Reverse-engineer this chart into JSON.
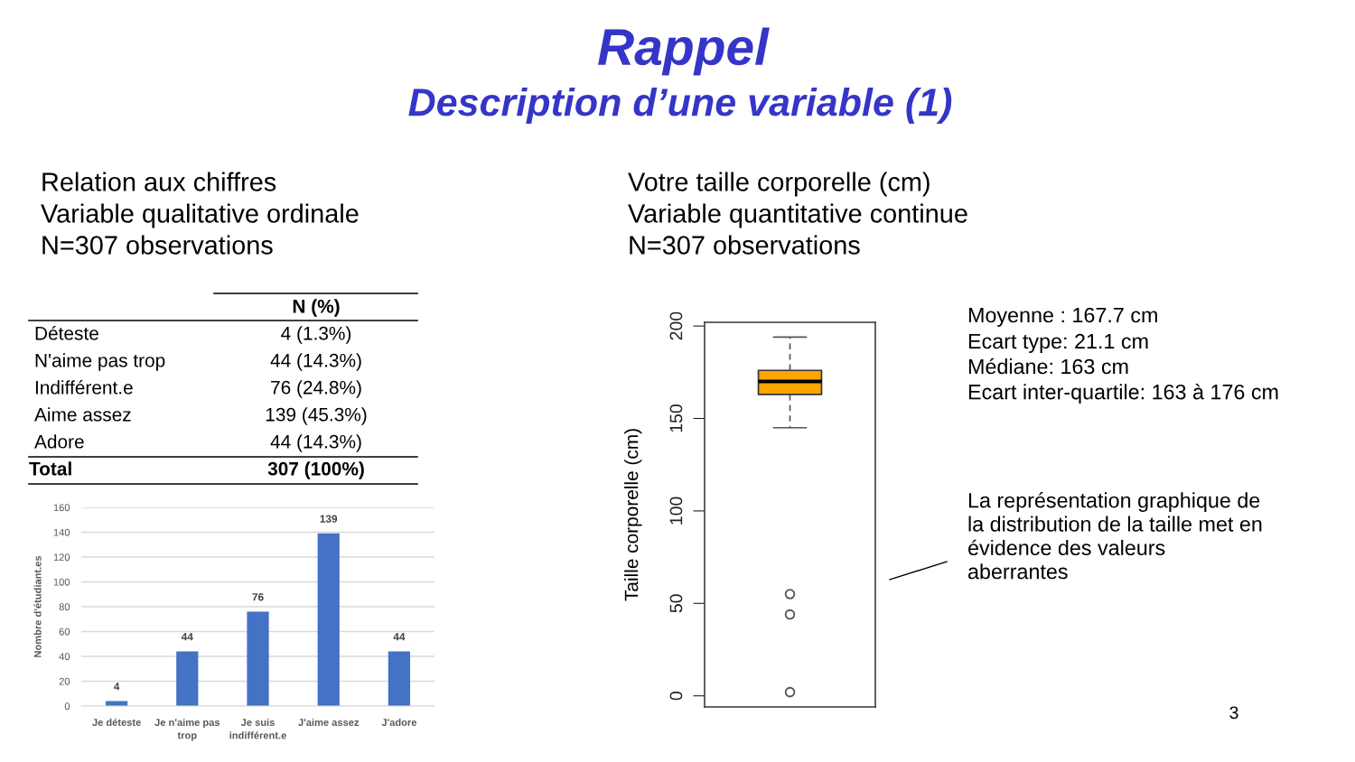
{
  "chart_data": [
    {
      "type": "other",
      "title": "Rappel",
      "subtitle": "Description d’une variable (1)",
      "annotations": [
        "3"
      ]
    },
    {
      "type": "other",
      "annotations": [
        "Relation aux chiffres",
        "Variable qualitative ordinale",
        "N=307 observations"
      ]
    },
    {
      "type": "other",
      "title": "N (%)",
      "annotations": [
        "Déteste",
        "4 (1.3%)",
        "N'aime pas trop",
        "44 (14.3%)",
        "Indifférent.e",
        "76 (24.8%)",
        "Aime assez",
        "139 (45.3%)",
        "Adore",
        "44 (14.3%)",
        "Total",
        "307 (100%)"
      ]
    },
    {
      "type": "bar",
      "categories": [
        "Je déteste",
        "Je n'aime pas\ntrop",
        "Je suis\nindifférent.e",
        "J'aime assez",
        "J'adore"
      ],
      "values": [
        4,
        44,
        76,
        139,
        44
      ],
      "color": "#4472c4",
      "ylabel": "Nombre d'étudiant.es",
      "ylim": [
        0,
        160
      ],
      "yticks": [
        0,
        20,
        40,
        60,
        80,
        100,
        120,
        140,
        160
      ],
      "grid": "y",
      "data_labels": true
    },
    {
      "type": "other",
      "annotations": [
        "Votre taille corporelle (cm)",
        "Variable quantitative continue",
        "N=307 observations"
      ]
    },
    {
      "type": "box",
      "categories": [
        null
      ],
      "series": [
        {
          "color": "#ffa500",
          "boxes": [
            {
              "low": 145,
              "q1": 163,
              "median": 170,
              "q3": 176,
              "high": 194,
              "outliers": [
                55,
                44,
                2
              ]
            }
          ]
        }
      ],
      "ylabel": "Taille corporelle (cm)",
      "ylim": [
        -6,
        202
      ],
      "yticks": [
        0,
        50,
        100,
        150,
        200
      ],
      "annotations": [
        "Moyenne : 167.7 cm",
        "Ecart type: 21.1 cm",
        "Médiane: 163 cm",
        "Ecart inter-quartile: 163 à 176 cm",
        "La représentation graphique de\nla distribution de la taille met en\névidence des valeurs\naberrantes"
      ]
    }
  ]
}
